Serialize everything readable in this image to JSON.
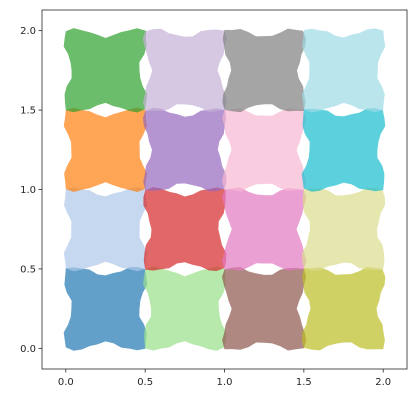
{
  "chart_data": {
    "type": "scatter",
    "title": "",
    "xlabel": "",
    "ylabel": "",
    "xlim": [
      -0.15,
      2.15
    ],
    "ylim": [
      -0.13,
      2.13
    ],
    "grid": false,
    "legend": "none",
    "x_ticks": [
      {
        "value": 0.0,
        "label": "0.0"
      },
      {
        "value": 0.5,
        "label": "0.5"
      },
      {
        "value": 1.0,
        "label": "1.0"
      },
      {
        "value": 1.5,
        "label": "1.5"
      },
      {
        "value": 2.0,
        "label": "2.0"
      }
    ],
    "y_ticks": [
      {
        "value": 0.0,
        "label": "0.0"
      },
      {
        "value": 0.5,
        "label": "0.5"
      },
      {
        "value": 1.0,
        "label": "1.0"
      },
      {
        "value": 1.5,
        "label": "1.5"
      },
      {
        "value": 2.0,
        "label": "2.0"
      }
    ],
    "tiles": [
      {
        "col": 0,
        "row": 0,
        "color": "#1f77b4"
      },
      {
        "col": 1,
        "row": 0,
        "color": "#98df8a"
      },
      {
        "col": 2,
        "row": 0,
        "color": "#8c564b"
      },
      {
        "col": 3,
        "row": 0,
        "color": "#bcbd22"
      },
      {
        "col": 0,
        "row": 1,
        "color": "#aec7e8"
      },
      {
        "col": 1,
        "row": 1,
        "color": "#d62728"
      },
      {
        "col": 2,
        "row": 1,
        "color": "#e377c2"
      },
      {
        "col": 3,
        "row": 1,
        "color": "#dbdb8d"
      },
      {
        "col": 0,
        "row": 2,
        "color": "#ff7f0e"
      },
      {
        "col": 1,
        "row": 2,
        "color": "#9467bd"
      },
      {
        "col": 2,
        "row": 2,
        "color": "#f7b6d2"
      },
      {
        "col": 3,
        "row": 2,
        "color": "#17becf"
      },
      {
        "col": 0,
        "row": 3,
        "color": "#2ca02c"
      },
      {
        "col": 1,
        "row": 3,
        "color": "#c5b0d5"
      },
      {
        "col": 2,
        "row": 3,
        "color": "#7f7f7f"
      },
      {
        "col": 3,
        "row": 3,
        "color": "#9edae5"
      }
    ],
    "tile_size": 0.5,
    "tile_opacity": 0.7
  }
}
